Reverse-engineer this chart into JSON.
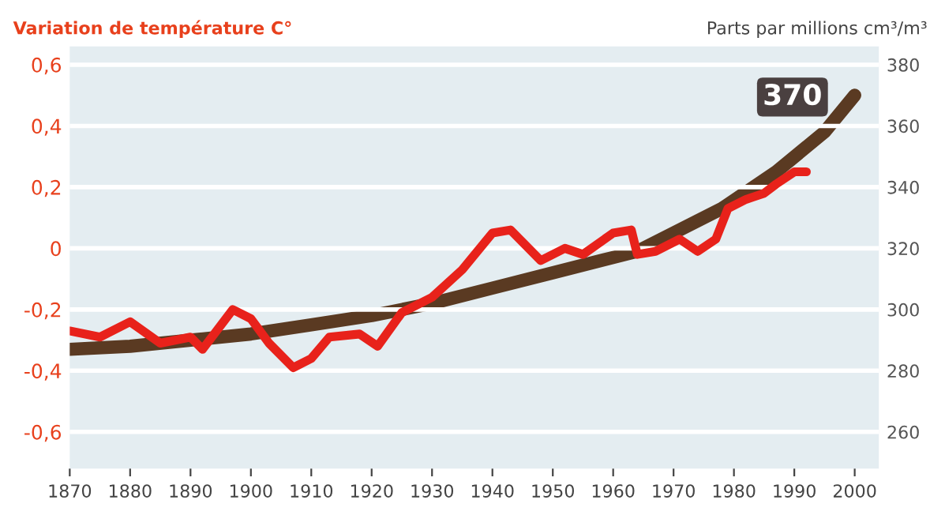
{
  "chart_data": {
    "type": "line",
    "ylabel": "Variation de température C°",
    "y2label": "Parts par millions cm³/m³",
    "series": [
      {
        "color": "#e8221b",
        "x": [
          1870,
          1875,
          1880,
          1885,
          1890,
          1892,
          1897,
          1900,
          1903,
          1907,
          1910,
          1913,
          1918,
          1921,
          1925,
          1930,
          1935,
          1940,
          1943,
          1948,
          1952,
          1955,
          1960,
          1963,
          1964,
          1967,
          1971,
          1974,
          1977,
          1979,
          1982,
          1985,
          1987,
          1990,
          1992
        ],
        "values": [
          -0.27,
          -0.29,
          -0.24,
          -0.31,
          -0.29,
          -0.33,
          -0.2,
          -0.23,
          -0.31,
          -0.39,
          -0.36,
          -0.29,
          -0.28,
          -0.32,
          -0.21,
          -0.16,
          -0.07,
          0.05,
          0.06,
          -0.04,
          0.0,
          -0.02,
          0.05,
          0.06,
          -0.02,
          -0.01,
          0.03,
          -0.01,
          0.03,
          0.13,
          0.16,
          0.18,
          0.21,
          0.25,
          0.25
        ]
      },
      {
        "color": "#5a3a22",
        "axis": "y2",
        "x": [
          1870,
          1880,
          1890,
          1900,
          1910,
          1920,
          1930,
          1940,
          1950,
          1960,
          1964,
          1970,
          1978,
          1987,
          1995,
          2000
        ],
        "values": [
          287,
          288,
          290,
          292,
          295,
          298,
          302,
          307,
          312,
          317,
          319,
          325,
          333,
          345,
          358,
          370
        ]
      }
    ],
    "annotations": [
      "370"
    ],
    "xlim": [
      1870,
      2004
    ],
    "xticks": [
      1870,
      1880,
      1890,
      1900,
      1910,
      1920,
      1930,
      1940,
      1950,
      1960,
      1970,
      1980,
      1990,
      2000
    ],
    "ylim": [
      -0.72,
      0.66
    ],
    "yticks": [
      {
        "value": -0.6,
        "label": "-0,6"
      },
      {
        "value": -0.4,
        "label": "-0,4"
      },
      {
        "value": -0.2,
        "label": "-0,2"
      },
      0,
      {
        "value": 0.2,
        "label": "0,2"
      },
      {
        "value": 0.4,
        "label": "0,4"
      },
      {
        "value": 0.6,
        "label": "0,6"
      }
    ],
    "y2lim": [
      248,
      386
    ],
    "y2ticks": [
      260,
      280,
      300,
      320,
      340,
      360,
      380
    ],
    "grid": "y",
    "legend": false,
    "line_style": "solid",
    "marker": "none"
  }
}
